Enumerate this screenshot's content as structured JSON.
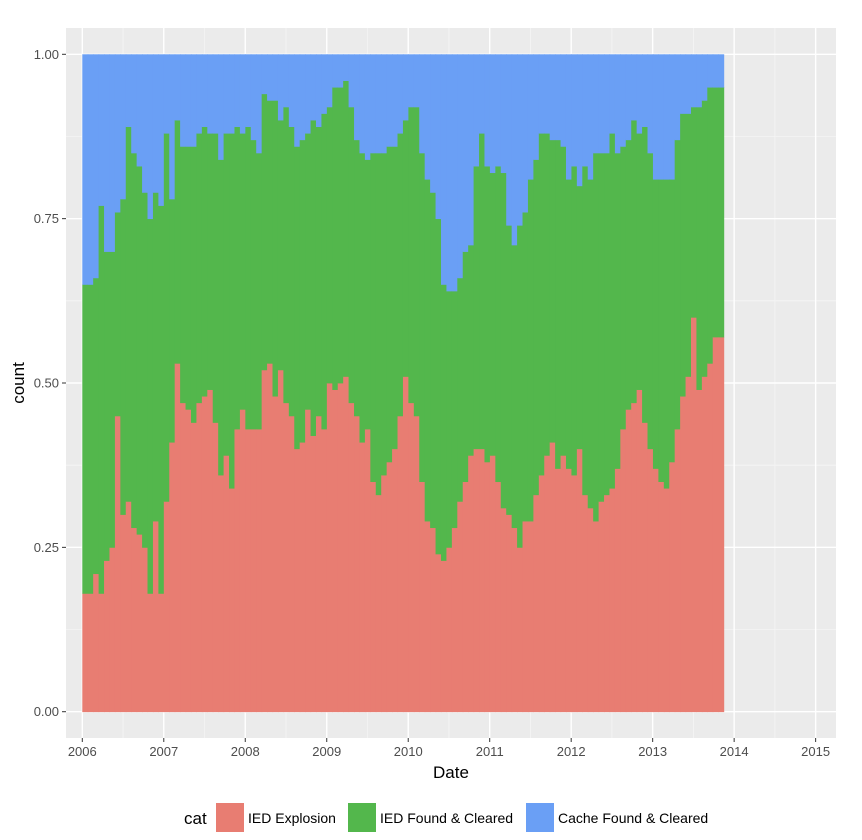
{
  "chart_data": {
    "type": "area",
    "stacked": "fill",
    "title": "",
    "xlabel": "Date",
    "ylabel": "count",
    "xlim": [
      2005.8,
      2015.25
    ],
    "ylim": [
      -0.04,
      1.04
    ],
    "x_ticks": [
      2006,
      2007,
      2008,
      2009,
      2010,
      2011,
      2012,
      2013,
      2014,
      2015
    ],
    "x_tick_labels": [
      "2006",
      "2007",
      "2008",
      "2009",
      "2010",
      "2011",
      "2012",
      "2013",
      "2014",
      "2015"
    ],
    "y_ticks": [
      0,
      0.25,
      0.5,
      0.75,
      1.0
    ],
    "y_tick_labels": [
      "0.00",
      "0.25",
      "0.50",
      "0.75",
      "1.00"
    ],
    "grid": true,
    "legend": {
      "title": "cat",
      "position": "bottom"
    },
    "x_start": 2006.0,
    "x_step": 0.0667,
    "series": [
      {
        "name": "IED Explosion",
        "color": "#E87D72",
        "values": [
          0.18,
          0.18,
          0.21,
          0.18,
          0.23,
          0.25,
          0.45,
          0.3,
          0.32,
          0.28,
          0.27,
          0.25,
          0.18,
          0.29,
          0.18,
          0.32,
          0.41,
          0.53,
          0.47,
          0.46,
          0.44,
          0.47,
          0.48,
          0.49,
          0.44,
          0.36,
          0.39,
          0.34,
          0.43,
          0.46,
          0.43,
          0.43,
          0.43,
          0.52,
          0.53,
          0.48,
          0.52,
          0.47,
          0.45,
          0.4,
          0.41,
          0.46,
          0.42,
          0.45,
          0.43,
          0.5,
          0.49,
          0.5,
          0.51,
          0.47,
          0.45,
          0.41,
          0.43,
          0.35,
          0.33,
          0.36,
          0.38,
          0.4,
          0.45,
          0.51,
          0.47,
          0.45,
          0.35,
          0.29,
          0.28,
          0.24,
          0.23,
          0.25,
          0.28,
          0.32,
          0.35,
          0.39,
          0.4,
          0.4,
          0.38,
          0.39,
          0.35,
          0.31,
          0.3,
          0.28,
          0.25,
          0.29,
          0.29,
          0.33,
          0.36,
          0.39,
          0.41,
          0.37,
          0.39,
          0.37,
          0.36,
          0.4,
          0.33,
          0.31,
          0.29,
          0.32,
          0.33,
          0.34,
          0.37,
          0.43,
          0.46,
          0.47,
          0.49,
          0.44,
          0.4,
          0.37,
          0.35,
          0.34,
          0.38,
          0.43,
          0.48,
          0.51,
          0.6,
          0.49,
          0.51,
          0.53,
          0.57,
          0.57
        ]
      },
      {
        "name": "IED Found & Cleared",
        "color": "#53B74C",
        "values": [
          0.47,
          0.47,
          0.45,
          0.59,
          0.47,
          0.45,
          0.31,
          0.48,
          0.57,
          0.57,
          0.56,
          0.54,
          0.57,
          0.5,
          0.59,
          0.56,
          0.37,
          0.37,
          0.39,
          0.4,
          0.42,
          0.41,
          0.41,
          0.39,
          0.44,
          0.48,
          0.49,
          0.54,
          0.46,
          0.42,
          0.46,
          0.44,
          0.42,
          0.42,
          0.4,
          0.45,
          0.38,
          0.45,
          0.44,
          0.46,
          0.46,
          0.42,
          0.48,
          0.44,
          0.48,
          0.42,
          0.46,
          0.45,
          0.45,
          0.45,
          0.42,
          0.44,
          0.41,
          0.5,
          0.52,
          0.49,
          0.48,
          0.46,
          0.43,
          0.39,
          0.45,
          0.47,
          0.5,
          0.52,
          0.51,
          0.51,
          0.42,
          0.39,
          0.36,
          0.34,
          0.35,
          0.32,
          0.43,
          0.48,
          0.45,
          0.43,
          0.48,
          0.51,
          0.44,
          0.43,
          0.49,
          0.47,
          0.52,
          0.51,
          0.52,
          0.49,
          0.46,
          0.5,
          0.47,
          0.44,
          0.47,
          0.4,
          0.5,
          0.5,
          0.56,
          0.53,
          0.52,
          0.54,
          0.48,
          0.43,
          0.41,
          0.43,
          0.39,
          0.45,
          0.45,
          0.44,
          0.46,
          0.47,
          0.43,
          0.44,
          0.43,
          0.4,
          0.32,
          0.43,
          0.42,
          0.42,
          0.38,
          0.38
        ]
      },
      {
        "name": "Cache Found & Cleared",
        "color": "#6A9FF5",
        "values": [
          0.35,
          0.35,
          0.34,
          0.23,
          0.3,
          0.3,
          0.24,
          0.22,
          0.11,
          0.15,
          0.17,
          0.21,
          0.25,
          0.21,
          0.23,
          0.12,
          0.22,
          0.1,
          0.14,
          0.14,
          0.14,
          0.12,
          0.11,
          0.12,
          0.12,
          0.16,
          0.12,
          0.12,
          0.11,
          0.12,
          0.11,
          0.13,
          0.15,
          0.06,
          0.07,
          0.07,
          0.1,
          0.08,
          0.11,
          0.14,
          0.13,
          0.12,
          0.1,
          0.11,
          0.09,
          0.08,
          0.05,
          0.05,
          0.04,
          0.08,
          0.13,
          0.15,
          0.16,
          0.15,
          0.15,
          0.15,
          0.14,
          0.14,
          0.12,
          0.1,
          0.08,
          0.08,
          0.15,
          0.19,
          0.21,
          0.25,
          0.35,
          0.36,
          0.36,
          0.34,
          0.3,
          0.29,
          0.17,
          0.12,
          0.17,
          0.18,
          0.17,
          0.18,
          0.26,
          0.29,
          0.26,
          0.24,
          0.19,
          0.16,
          0.12,
          0.12,
          0.13,
          0.13,
          0.14,
          0.19,
          0.17,
          0.2,
          0.17,
          0.19,
          0.15,
          0.15,
          0.15,
          0.12,
          0.15,
          0.14,
          0.13,
          0.1,
          0.12,
          0.11,
          0.15,
          0.19,
          0.19,
          0.19,
          0.19,
          0.13,
          0.09,
          0.09,
          0.08,
          0.08,
          0.07,
          0.05,
          0.05,
          0.05
        ]
      }
    ]
  }
}
